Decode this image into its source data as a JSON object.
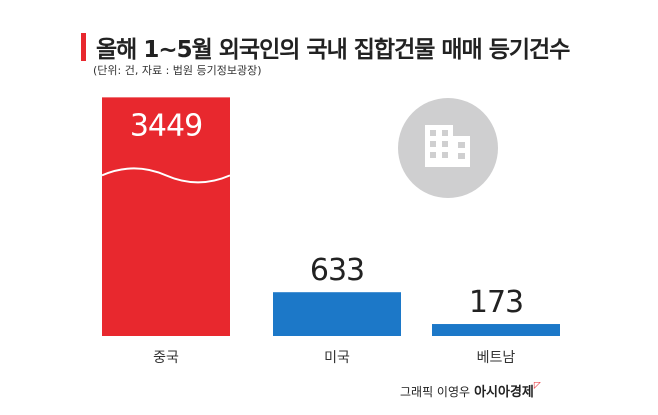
{
  "header": {
    "title": "올해 1~5월 외국인의 국내 집합건물 매매 등기건수",
    "subtitle": "(단위: 건, 자료 : 법원 등기정보광장)"
  },
  "colors": {
    "accent": "#e8282e",
    "primary_bar": "#e8282e",
    "secondary_bar": "#1c78c8",
    "icon_bg": "#cfcfd0"
  },
  "icon": {
    "name": "building-icon"
  },
  "chart_data": {
    "type": "bar",
    "categories": [
      "중국",
      "미국",
      "베트남"
    ],
    "values": [
      3449,
      633,
      173
    ],
    "ylim": [
      0,
      3700
    ],
    "grid": false,
    "legend": "none"
  },
  "footer": {
    "credit_prefix": "그래픽 이영우",
    "brand": "아시아경제"
  }
}
